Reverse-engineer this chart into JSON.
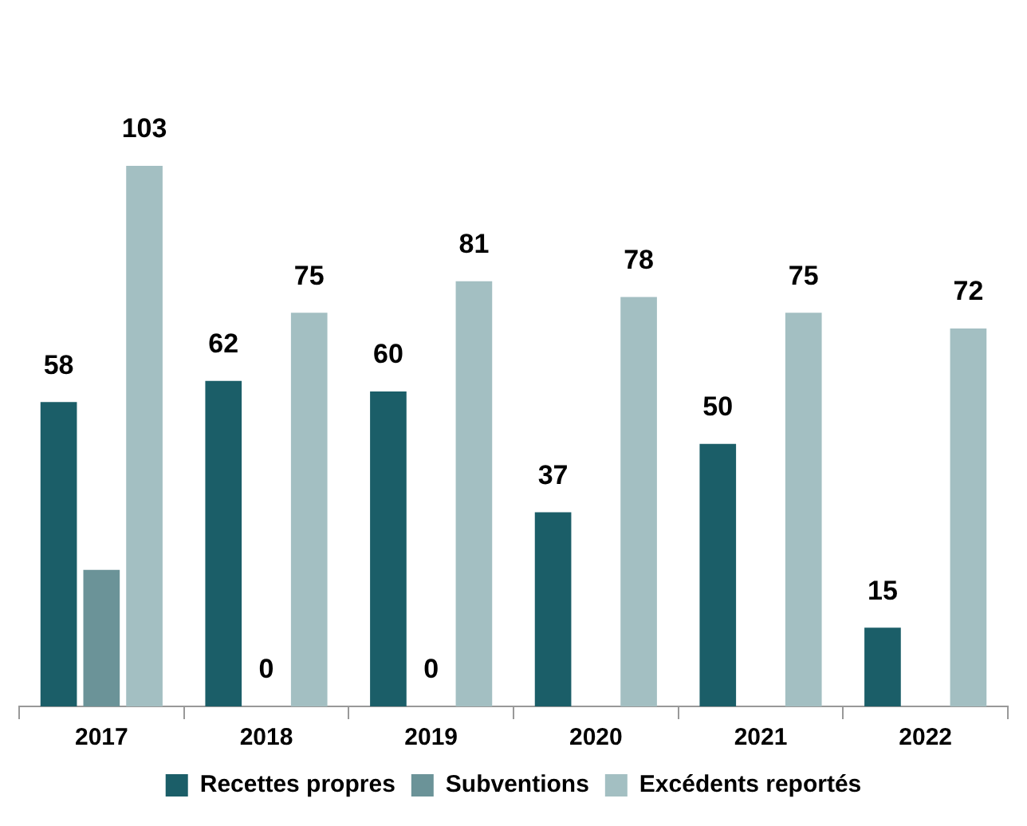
{
  "chart_data": {
    "type": "bar",
    "categories": [
      "2017",
      "2018",
      "2019",
      "2020",
      "2021",
      "2022"
    ],
    "series": [
      {
        "name": "Recettes propres",
        "color": "#1b5e68",
        "values": [
          58,
          62,
          60,
          37,
          50,
          15
        ],
        "value_labels": [
          "58",
          "62",
          "60",
          "37",
          "50",
          "15"
        ]
      },
      {
        "name": "Subventions",
        "color": "#6b9398",
        "values": [
          26,
          0,
          0,
          null,
          null,
          null
        ],
        "value_labels": [
          null,
          "0",
          "0",
          null,
          null,
          null
        ]
      },
      {
        "name": "Excédents reportés",
        "color": "#a3bfc2",
        "values": [
          103,
          75,
          81,
          78,
          75,
          72
        ],
        "value_labels": [
          "103",
          "75",
          "81",
          "78",
          "75",
          "72"
        ]
      }
    ],
    "legend": "bottom",
    "grid": false
  }
}
